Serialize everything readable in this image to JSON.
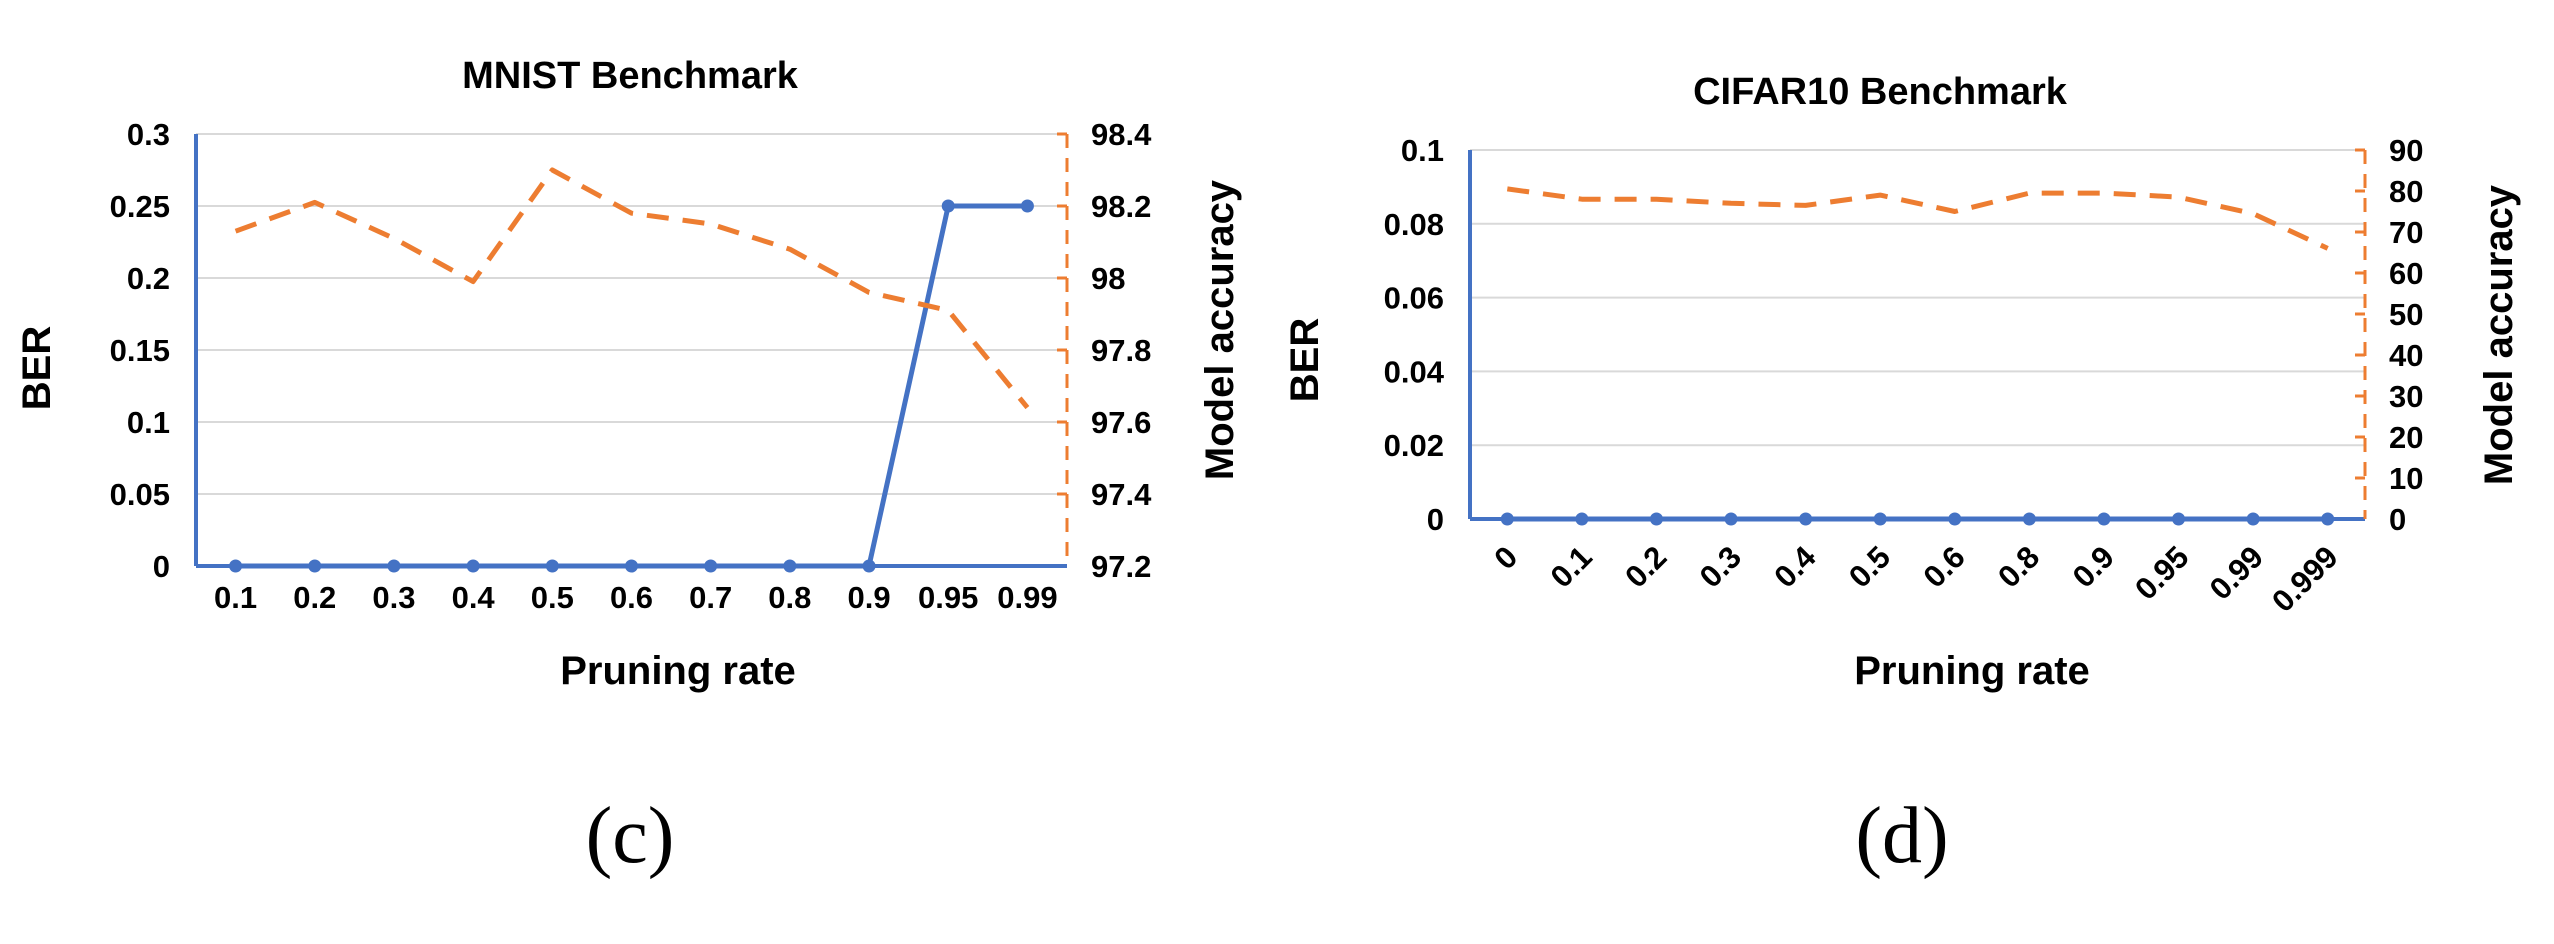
{
  "colors": {
    "ber": "#4472c4",
    "accuracy": "#ed7d31",
    "grid": "#d9d9d9"
  },
  "chart_data": [
    {
      "id": "c",
      "type": "line",
      "title": "MNIST Benchmark",
      "subfigure_label": "(c)",
      "xlabel": "Pruning rate",
      "ylabel": "BER",
      "ylabel_right": "Model accuracy",
      "categories": [
        "0.1",
        "0.2",
        "0.3",
        "0.4",
        "0.5",
        "0.6",
        "0.7",
        "0.8",
        "0.9",
        "0.95",
        "0.99"
      ],
      "x_tick_rotation": 0,
      "ylim": [
        0,
        0.3
      ],
      "yticks": [
        "0",
        "0.05",
        "0.1",
        "0.15",
        "0.2",
        "0.25",
        "0.3"
      ],
      "ylim_right": [
        97.2,
        98.4
      ],
      "yticks_right": [
        "97.2",
        "97.4",
        "97.6",
        "97.8",
        "98",
        "98.2",
        "98.4"
      ],
      "grid": true,
      "series": [
        {
          "key": "ber",
          "axis": "left",
          "style": "solid-markers",
          "values": [
            0,
            0,
            0,
            0,
            0,
            0,
            0,
            0,
            0,
            0.25,
            0.25
          ]
        },
        {
          "key": "accuracy",
          "axis": "right",
          "style": "dashed",
          "values": [
            98.13,
            98.21,
            98.11,
            97.99,
            98.3,
            98.18,
            98.15,
            98.08,
            97.96,
            97.91,
            97.64
          ]
        }
      ]
    },
    {
      "id": "d",
      "type": "line",
      "title": "CIFAR10 Benchmark",
      "subfigure_label": "(d)",
      "xlabel": "Pruning rate",
      "ylabel": "BER",
      "ylabel_right": "Model accuracy",
      "categories": [
        "0",
        "0.1",
        "0.2",
        "0.3",
        "0.4",
        "0.5",
        "0.6",
        "0.8",
        "0.9",
        "0.95",
        "0.99",
        "0.999"
      ],
      "x_tick_rotation": -45,
      "ylim": [
        0,
        0.1
      ],
      "yticks": [
        "0",
        "0.02",
        "0.04",
        "0.06",
        "0.08",
        "0.1"
      ],
      "ylim_right": [
        0,
        90
      ],
      "yticks_right": [
        "0",
        "10",
        "20",
        "30",
        "40",
        "50",
        "60",
        "70",
        "80",
        "90"
      ],
      "grid": true,
      "series": [
        {
          "key": "ber",
          "axis": "left",
          "style": "solid-markers",
          "values": [
            0,
            0,
            0,
            0,
            0,
            0,
            0,
            0,
            0,
            0,
            0,
            0
          ]
        },
        {
          "key": "accuracy",
          "axis": "right",
          "style": "dashed",
          "values": [
            80.5,
            78,
            78,
            77,
            76.5,
            79,
            75,
            79.5,
            79.5,
            78.5,
            74.5,
            66
          ]
        }
      ]
    }
  ]
}
